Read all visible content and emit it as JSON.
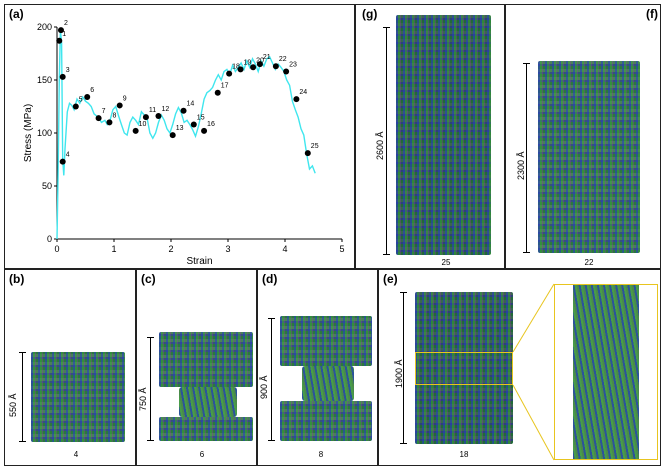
{
  "panels": {
    "a": {
      "label": "(a)"
    },
    "b": {
      "label": "(b)",
      "scale": "550 Å",
      "frame": "4"
    },
    "c": {
      "label": "(c)",
      "scale": "750 Å",
      "frame": "6"
    },
    "d": {
      "label": "(d)",
      "scale": "900 Å",
      "frame": "8"
    },
    "e": {
      "label": "(e)",
      "scale": "1900 Å",
      "frame": "18"
    },
    "f": {
      "label": "(f)",
      "scale": "2300 Å",
      "frame": "22"
    },
    "g": {
      "label": "(g)",
      "scale": "2600 Å",
      "frame": "25"
    }
  },
  "colors": {
    "curve": "#3fe6ee",
    "marker": "#000000",
    "highlight": "#e8c51f"
  },
  "chart_data": {
    "type": "line",
    "xlabel": "Strain",
    "ylabel": "Stress (MPa)",
    "xlim": [
      0,
      5
    ],
    "ylim": [
      0,
      200
    ],
    "xticks": [
      0,
      1,
      2,
      3,
      4,
      5
    ],
    "yticks": [
      0,
      50,
      100,
      150,
      200
    ],
    "curve": {
      "x": [
        0,
        0.02,
        0.04,
        0.06,
        0.08,
        0.1,
        0.12,
        0.14,
        0.18,
        0.22,
        0.26,
        0.3,
        0.35,
        0.4,
        0.45,
        0.5,
        0.55,
        0.6,
        0.65,
        0.72,
        0.78,
        0.84,
        0.88,
        0.93,
        0.98,
        1.03,
        1.08,
        1.13,
        1.18,
        1.23,
        1.28,
        1.33,
        1.38,
        1.43,
        1.48,
        1.53,
        1.58,
        1.63,
        1.68,
        1.73,
        1.78,
        1.83,
        1.88,
        1.93,
        1.98,
        2.03,
        2.08,
        2.13,
        2.18,
        2.23,
        2.28,
        2.33,
        2.38,
        2.43,
        2.48,
        2.53,
        2.58,
        2.63,
        2.68,
        2.73,
        2.78,
        2.83,
        2.88,
        2.93,
        2.98,
        3.03,
        3.08,
        3.13,
        3.18,
        3.23,
        3.28,
        3.33,
        3.38,
        3.43,
        3.48,
        3.53,
        3.58,
        3.63,
        3.68,
        3.73,
        3.78,
        3.83,
        3.88,
        3.93,
        3.98,
        4.03,
        4.08,
        4.13,
        4.18,
        4.23,
        4.28,
        4.33,
        4.38,
        4.43,
        4.48,
        4.53
      ],
      "y": [
        0,
        60,
        150,
        197,
        185,
        75,
        60,
        85,
        120,
        128,
        126,
        122,
        132,
        128,
        134,
        130,
        128,
        125,
        118,
        115,
        110,
        112,
        108,
        112,
        122,
        125,
        116,
        108,
        100,
        98,
        110,
        115,
        112,
        108,
        120,
        117,
        114,
        100,
        95,
        100,
        110,
        117,
        112,
        104,
        100,
        108,
        118,
        124,
        119,
        110,
        112,
        108,
        103,
        97,
        106,
        118,
        132,
        138,
        140,
        143,
        150,
        155,
        150,
        158,
        160,
        155,
        164,
        158,
        162,
        166,
        160,
        168,
        162,
        170,
        165,
        158,
        168,
        163,
        170,
        172,
        166,
        160,
        165,
        162,
        158,
        150,
        145,
        130,
        122,
        115,
        104,
        98,
        80,
        66,
        69,
        62
      ]
    },
    "points": [
      {
        "label": "1",
        "x": 0.04,
        "y": 187
      },
      {
        "label": "2",
        "x": 0.07,
        "y": 197
      },
      {
        "label": "3",
        "x": 0.1,
        "y": 153
      },
      {
        "label": "4",
        "x": 0.1,
        "y": 73
      },
      {
        "label": "5",
        "x": 0.33,
        "y": 125
      },
      {
        "label": "6",
        "x": 0.53,
        "y": 134
      },
      {
        "label": "7",
        "x": 0.73,
        "y": 114
      },
      {
        "label": "8",
        "x": 0.92,
        "y": 110
      },
      {
        "label": "9",
        "x": 1.1,
        "y": 126
      },
      {
        "label": "10",
        "x": 1.38,
        "y": 102
      },
      {
        "label": "11",
        "x": 1.56,
        "y": 115
      },
      {
        "label": "12",
        "x": 1.78,
        "y": 116
      },
      {
        "label": "13",
        "x": 2.03,
        "y": 98
      },
      {
        "label": "14",
        "x": 2.22,
        "y": 121
      },
      {
        "label": "15",
        "x": 2.4,
        "y": 108
      },
      {
        "label": "16",
        "x": 2.58,
        "y": 102
      },
      {
        "label": "17",
        "x": 2.82,
        "y": 138
      },
      {
        "label": "18",
        "x": 3.02,
        "y": 156
      },
      {
        "label": "19",
        "x": 3.22,
        "y": 160
      },
      {
        "label": "20",
        "x": 3.44,
        "y": 162
      },
      {
        "label": "21",
        "x": 3.56,
        "y": 165
      },
      {
        "label": "22",
        "x": 3.84,
        "y": 163
      },
      {
        "label": "23",
        "x": 4.02,
        "y": 158
      },
      {
        "label": "24",
        "x": 4.2,
        "y": 132
      },
      {
        "label": "25",
        "x": 4.4,
        "y": 81
      }
    ]
  }
}
